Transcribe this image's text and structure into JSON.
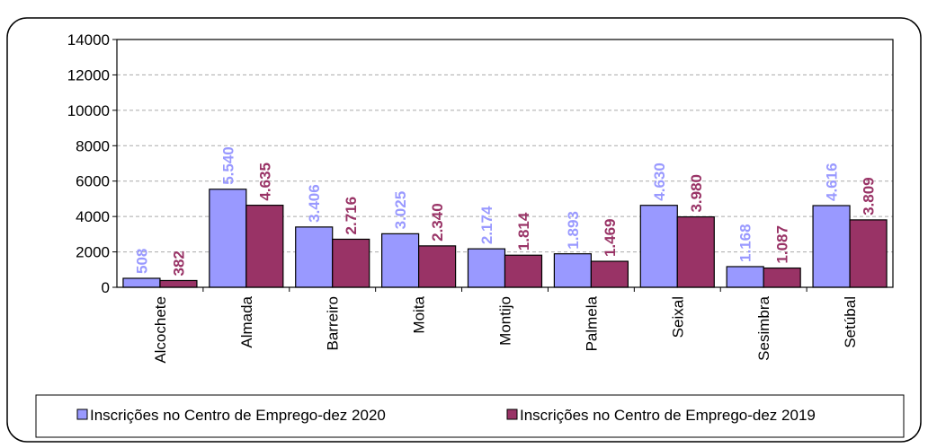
{
  "chart_data": {
    "type": "bar",
    "categories": [
      "Alcochete",
      "Almada",
      "Barreiro",
      "Moita",
      "Montijo",
      "Palmela",
      "Seixal",
      "Sesimbra",
      "Setúbal"
    ],
    "series": [
      {
        "name": "Inscrições no Centro de Emprego-dez 2020",
        "color": "#9999ff",
        "values": [
          508,
          5540,
          3406,
          3025,
          2174,
          1893,
          4630,
          1168,
          4616
        ],
        "value_labels": [
          "508",
          "5.540",
          "3.406",
          "3.025",
          "2.174",
          "1.893",
          "4.630",
          "1.168",
          "4.616"
        ]
      },
      {
        "name": "Inscrições no Centro de Emprego-dez 2019",
        "color": "#993366",
        "values": [
          382,
          4635,
          2716,
          2340,
          1814,
          1469,
          3980,
          1087,
          3809
        ],
        "value_labels": [
          "382",
          "4.635",
          "2.716",
          "2.340",
          "1.814",
          "1.469",
          "3.980",
          "1.087",
          "3.809"
        ]
      }
    ],
    "ylim": [
      0,
      14000
    ],
    "yticks": [
      0,
      2000,
      4000,
      6000,
      8000,
      10000,
      12000,
      14000
    ],
    "grid": true,
    "legend": "bottom"
  }
}
